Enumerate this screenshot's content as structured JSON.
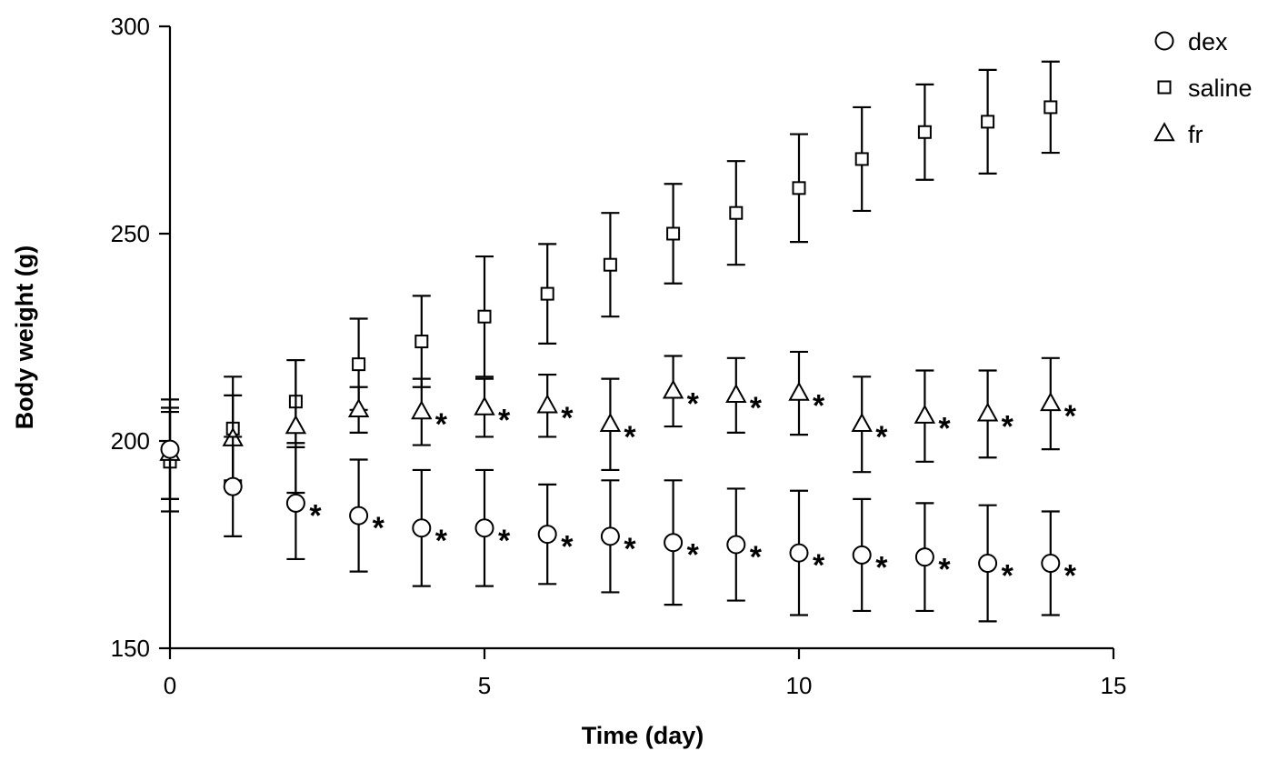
{
  "chart_data": {
    "type": "scatter",
    "title": "",
    "xlabel": "Time (day)",
    "ylabel": "Body weight (g)",
    "xlim": [
      0,
      15
    ],
    "ylim": [
      150,
      300
    ],
    "xticks": [
      0,
      5,
      10,
      15
    ],
    "yticks": [
      150,
      200,
      250,
      300
    ],
    "x": [
      0,
      1,
      2,
      3,
      4,
      5,
      6,
      7,
      8,
      9,
      10,
      11,
      12,
      13,
      14
    ],
    "grid": false,
    "legend_position": "top-right",
    "series": [
      {
        "name": "dex",
        "marker": "circle",
        "values": [
          198,
          189,
          185,
          182,
          179,
          179,
          177.5,
          177,
          175.5,
          175,
          173,
          172.5,
          172,
          170.5,
          170.5
        ],
        "errors": [
          12,
          12,
          13.5,
          13.5,
          14,
          14,
          12,
          13.5,
          15,
          13.5,
          15,
          13.5,
          13,
          14,
          12.5
        ],
        "significant": [
          false,
          false,
          true,
          true,
          true,
          true,
          true,
          true,
          true,
          true,
          true,
          true,
          true,
          true,
          true
        ]
      },
      {
        "name": "saline",
        "marker": "square",
        "values": [
          195,
          203,
          209.5,
          218.5,
          224,
          230,
          235.5,
          242.5,
          250,
          255,
          261,
          268,
          274.5,
          277,
          280.5
        ],
        "errors": [
          12,
          12.5,
          10,
          11,
          11,
          14.5,
          12,
          12.5,
          12,
          12.5,
          13,
          12.5,
          11.5,
          12.5,
          11
        ],
        "significant": [
          false,
          false,
          false,
          false,
          false,
          false,
          false,
          false,
          false,
          false,
          false,
          false,
          false,
          false,
          false
        ]
      },
      {
        "name": "fr",
        "marker": "triangle",
        "values": [
          197,
          200.5,
          203.5,
          207.5,
          207,
          208,
          208.5,
          204,
          212,
          211,
          211.5,
          204,
          206,
          206.5,
          209
        ],
        "errors": [
          11,
          10.5,
          16,
          5.5,
          8,
          7,
          7.5,
          11,
          8.5,
          9,
          10,
          11.5,
          11,
          10.5,
          11
        ],
        "significant": [
          false,
          false,
          false,
          false,
          true,
          true,
          true,
          true,
          true,
          true,
          true,
          true,
          true,
          true,
          true
        ]
      }
    ],
    "annotation": "*"
  }
}
